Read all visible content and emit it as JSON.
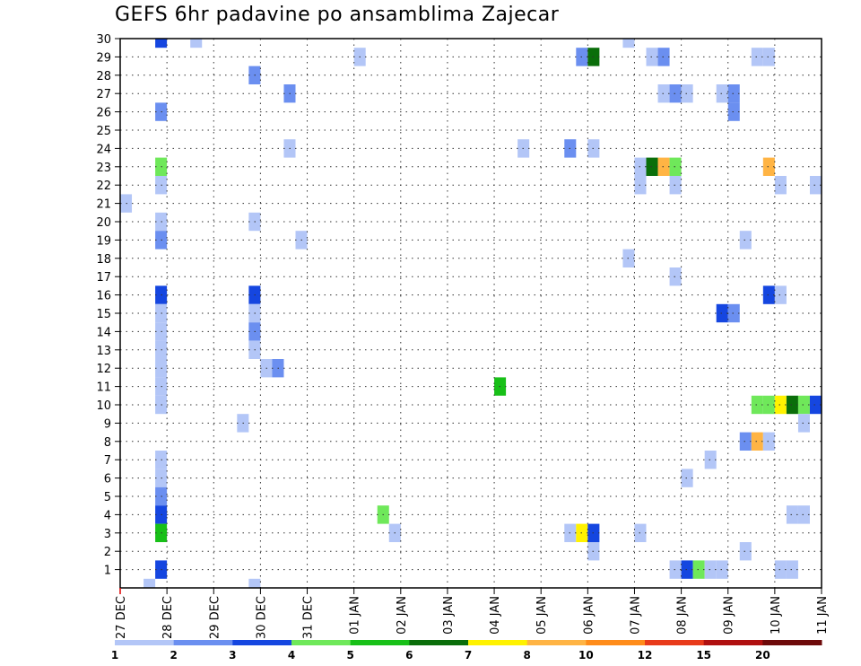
{
  "chart_data": {
    "type": "heatmap",
    "title": "GEFS 6hr padavine po ansamblima Zajecar",
    "xlabel": "",
    "ylabel": "",
    "x_tick_labels": [
      "27 DEC",
      "28 DEC",
      "29 DEC",
      "30 DEC",
      "31 DEC",
      "01 JAN",
      "02 JAN",
      "03 JAN",
      "04 JAN",
      "05 JAN",
      "06 JAN",
      "07 JAN",
      "08 JAN",
      "09 JAN",
      "10 JAN",
      "11 JAN"
    ],
    "y_tick_labels": [
      "1",
      "2",
      "3",
      "4",
      "5",
      "6",
      "7",
      "8",
      "9",
      "10",
      "11",
      "12",
      "13",
      "14",
      "15",
      "16",
      "17",
      "18",
      "19",
      "20",
      "21",
      "22",
      "23",
      "24",
      "25",
      "26",
      "27",
      "28",
      "29",
      "30"
    ],
    "xlim": [
      0,
      15
    ],
    "ylim": [
      0,
      30
    ],
    "grid": true,
    "colorbar": {
      "levels": [
        "1",
        "2",
        "3",
        "4",
        "5",
        "6",
        "7",
        "8",
        "10",
        "12",
        "15",
        "20"
      ],
      "colors": [
        "#b3c6f7",
        "#6b8ff0",
        "#1546e0",
        "#6fe85a",
        "#18c018",
        "#0a6e0a",
        "#fff200",
        "#ffb444",
        "#ff8c1a",
        "#e83a1a",
        "#b01010",
        "#6e0a0a"
      ]
    },
    "cells": [
      {
        "day": 0.75,
        "member": 30,
        "value": 3
      },
      {
        "day": 1.5,
        "member": 30,
        "value": 1
      },
      {
        "day": 10.75,
        "member": 30,
        "value": 1
      },
      {
        "day": 5.0,
        "member": 29,
        "value": 1
      },
      {
        "day": 9.75,
        "member": 29,
        "value": 2
      },
      {
        "day": 10.0,
        "member": 29,
        "value": 6
      },
      {
        "day": 11.25,
        "member": 29,
        "value": 1
      },
      {
        "day": 11.5,
        "member": 29,
        "value": 2
      },
      {
        "day": 13.5,
        "member": 29,
        "value": 1
      },
      {
        "day": 13.75,
        "member": 29,
        "value": 1
      },
      {
        "day": 2.75,
        "member": 28,
        "value": 2
      },
      {
        "day": 3.5,
        "member": 27,
        "value": 2
      },
      {
        "day": 11.5,
        "member": 27,
        "value": 1
      },
      {
        "day": 11.75,
        "member": 27,
        "value": 2
      },
      {
        "day": 12.0,
        "member": 27,
        "value": 1
      },
      {
        "day": 12.75,
        "member": 27,
        "value": 1
      },
      {
        "day": 13.0,
        "member": 27,
        "value": 2
      },
      {
        "day": 0.75,
        "member": 26,
        "value": 2
      },
      {
        "day": 13.0,
        "member": 26,
        "value": 2
      },
      {
        "day": 3.5,
        "member": 24,
        "value": 1
      },
      {
        "day": 8.5,
        "member": 24,
        "value": 1
      },
      {
        "day": 9.5,
        "member": 24,
        "value": 2
      },
      {
        "day": 10.0,
        "member": 24,
        "value": 1
      },
      {
        "day": 0.75,
        "member": 23,
        "value": 4
      },
      {
        "day": 11.0,
        "member": 23,
        "value": 1
      },
      {
        "day": 11.25,
        "member": 23,
        "value": 6
      },
      {
        "day": 11.5,
        "member": 23,
        "value": 8
      },
      {
        "day": 11.75,
        "member": 23,
        "value": 4
      },
      {
        "day": 13.75,
        "member": 23,
        "value": 8
      },
      {
        "day": 0.75,
        "member": 22,
        "value": 1
      },
      {
        "day": 11.0,
        "member": 22,
        "value": 1
      },
      {
        "day": 11.75,
        "member": 22,
        "value": 1
      },
      {
        "day": 14.0,
        "member": 22,
        "value": 1
      },
      {
        "day": 14.75,
        "member": 22,
        "value": 1
      },
      {
        "day": 0.0,
        "member": 21,
        "value": 1
      },
      {
        "day": 0.75,
        "member": 20,
        "value": 1
      },
      {
        "day": 2.75,
        "member": 20,
        "value": 1
      },
      {
        "day": 0.75,
        "member": 19,
        "value": 2
      },
      {
        "day": 3.75,
        "member": 19,
        "value": 1
      },
      {
        "day": 13.25,
        "member": 19,
        "value": 1
      },
      {
        "day": 10.75,
        "member": 18,
        "value": 1
      },
      {
        "day": 11.75,
        "member": 17,
        "value": 1
      },
      {
        "day": 0.75,
        "member": 16,
        "value": 3
      },
      {
        "day": 2.75,
        "member": 16,
        "value": 3
      },
      {
        "day": 13.75,
        "member": 16,
        "value": 3
      },
      {
        "day": 14.0,
        "member": 16,
        "value": 1
      },
      {
        "day": 0.75,
        "member": 15,
        "value": 1
      },
      {
        "day": 2.75,
        "member": 15,
        "value": 1
      },
      {
        "day": 12.75,
        "member": 15,
        "value": 3
      },
      {
        "day": 13.0,
        "member": 15,
        "value": 2
      },
      {
        "day": 0.75,
        "member": 14,
        "value": 1
      },
      {
        "day": 2.75,
        "member": 14,
        "value": 2
      },
      {
        "day": 0.75,
        "member": 13,
        "value": 1
      },
      {
        "day": -0.25,
        "member": 13,
        "value": 2
      },
      {
        "day": 2.75,
        "member": 13,
        "value": 1
      },
      {
        "day": -0.25,
        "member": 12,
        "value": 2
      },
      {
        "day": 0.75,
        "member": 12,
        "value": 1
      },
      {
        "day": 3.0,
        "member": 12,
        "value": 1
      },
      {
        "day": 3.25,
        "member": 12,
        "value": 2
      },
      {
        "day": 0.75,
        "member": 11,
        "value": 1
      },
      {
        "day": 8.0,
        "member": 11,
        "value": 5
      },
      {
        "day": 0.75,
        "member": 10,
        "value": 1
      },
      {
        "day": 13.5,
        "member": 10,
        "value": 4
      },
      {
        "day": 13.75,
        "member": 10,
        "value": 4
      },
      {
        "day": 14.0,
        "member": 10,
        "value": 7
      },
      {
        "day": 14.25,
        "member": 10,
        "value": 6
      },
      {
        "day": 14.5,
        "member": 10,
        "value": 4
      },
      {
        "day": 14.75,
        "member": 10,
        "value": 3
      },
      {
        "day": 2.5,
        "member": 9,
        "value": 1
      },
      {
        "day": 14.5,
        "member": 9,
        "value": 1
      },
      {
        "day": -0.25,
        "member": 8,
        "value": 1
      },
      {
        "day": 13.25,
        "member": 8,
        "value": 2
      },
      {
        "day": 13.5,
        "member": 8,
        "value": 8
      },
      {
        "day": 13.75,
        "member": 8,
        "value": 1
      },
      {
        "day": 0.75,
        "member": 7,
        "value": 1
      },
      {
        "day": 12.5,
        "member": 7,
        "value": 1
      },
      {
        "day": 0.75,
        "member": 6,
        "value": 1
      },
      {
        "day": 12.0,
        "member": 6,
        "value": 1
      },
      {
        "day": 0.75,
        "member": 5,
        "value": 2
      },
      {
        "day": -0.25,
        "member": 4,
        "value": 1
      },
      {
        "day": 0.75,
        "member": 4,
        "value": 3
      },
      {
        "day": 5.5,
        "member": 4,
        "value": 4
      },
      {
        "day": 14.25,
        "member": 4,
        "value": 1
      },
      {
        "day": 14.5,
        "member": 4,
        "value": 1
      },
      {
        "day": 0.75,
        "member": 3,
        "value": 5
      },
      {
        "day": 5.75,
        "member": 3,
        "value": 1
      },
      {
        "day": 9.5,
        "member": 3,
        "value": 1
      },
      {
        "day": 9.75,
        "member": 3,
        "value": 7
      },
      {
        "day": 10.0,
        "member": 3,
        "value": 3
      },
      {
        "day": 11.0,
        "member": 3,
        "value": 1
      },
      {
        "day": 10.0,
        "member": 2,
        "value": 1
      },
      {
        "day": 13.25,
        "member": 2,
        "value": 1
      },
      {
        "day": 0.75,
        "member": 1,
        "value": 3
      },
      {
        "day": 11.75,
        "member": 1,
        "value": 1
      },
      {
        "day": 12.0,
        "member": 1,
        "value": 3
      },
      {
        "day": 12.25,
        "member": 1,
        "value": 4
      },
      {
        "day": 12.5,
        "member": 1,
        "value": 1
      },
      {
        "day": 12.75,
        "member": 1,
        "value": 1
      },
      {
        "day": 14.0,
        "member": 1,
        "value": 1
      },
      {
        "day": 14.25,
        "member": 1,
        "value": 1
      },
      {
        "day": 0.5,
        "member": 0,
        "value": 1
      },
      {
        "day": 2.75,
        "member": 0,
        "value": 1
      }
    ]
  }
}
